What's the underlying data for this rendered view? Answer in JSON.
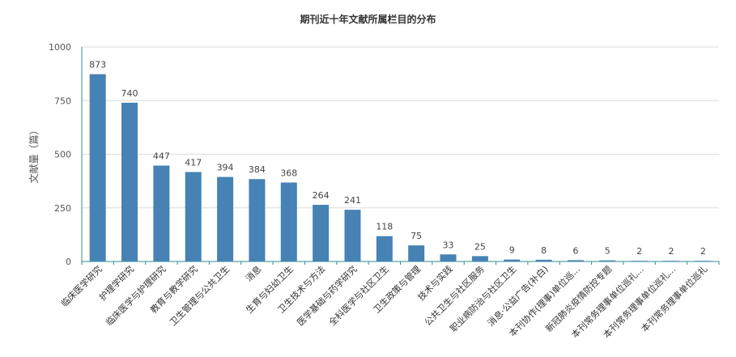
{
  "chart_data": {
    "type": "bar",
    "title": "期刊近十年文献所属栏目的分布",
    "xlabel": "",
    "ylabel": "文献量（篇）",
    "ylim": [
      0,
      1000
    ],
    "yticks": [
      0,
      250,
      500,
      750,
      1000
    ],
    "grid": true,
    "legend": "none",
    "bar_color": "#4682b4",
    "categories": [
      "临床医学研究",
      "护理学研究",
      "临床医学与护理研究",
      "教育与教学研究",
      "卫生管理与公共卫生",
      "消息",
      "生育与妇幼卫生",
      "卫生技术与方法",
      "医学基础与药学研究",
      "全科医学与社区卫生",
      "卫生政策与管理",
      "技术与实践",
      "公共卫生与社区服务",
      "职业病防治与社区卫生",
      "消息·公益广告(补白)",
      "本刊协作(理事)单位巡...",
      "新冠肺炎疫情防控专题",
      "本刊常务理事单位巡礼...",
      "本刊常务理事单位巡礼...",
      "本刊常务理事单位巡礼"
    ],
    "values": [
      873,
      740,
      447,
      417,
      394,
      384,
      368,
      264,
      241,
      118,
      75,
      33,
      25,
      9,
      8,
      6,
      5,
      2,
      2,
      2
    ]
  }
}
